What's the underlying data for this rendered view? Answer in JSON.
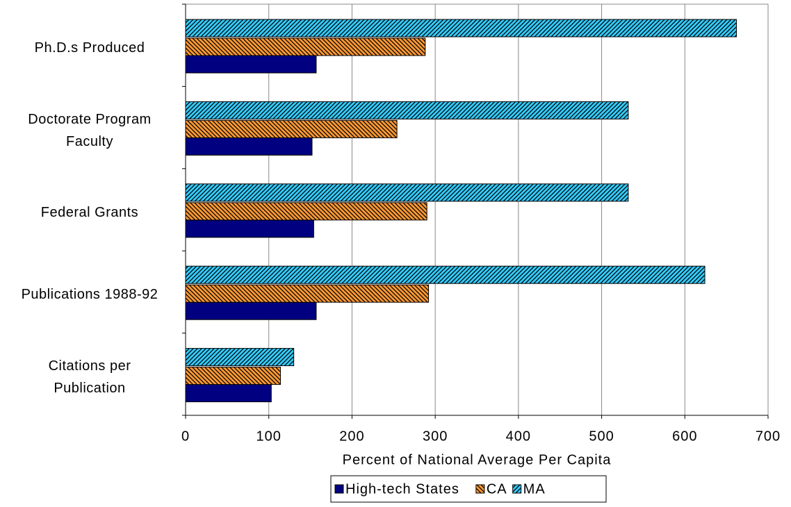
{
  "chart_data": {
    "type": "hbar",
    "categories": [
      "Ph.D.s Produced",
      "Doctorate  Program\nFaculty",
      "Federal Grants",
      "Publications  1988-92",
      "Citations per\nPublication"
    ],
    "series": [
      {
        "name": "High-tech States",
        "color": "#000080",
        "pattern": "solid",
        "values": [
          157,
          152,
          154,
          157,
          103
        ]
      },
      {
        "name": "CA",
        "color": "#ff9933",
        "pattern": "backslash",
        "values": [
          288,
          254,
          290,
          292,
          114
        ]
      },
      {
        "name": "MA",
        "color": "#33ccff",
        "pattern": "slash",
        "values": [
          662,
          532,
          532,
          624,
          130
        ]
      }
    ],
    "xlabel": "Percent of National Average Per Capita",
    "xlim": [
      0,
      700
    ],
    "xticks": [
      0,
      100,
      200,
      300,
      400,
      500,
      600,
      700
    ],
    "grid": true,
    "legend": "bottom"
  }
}
